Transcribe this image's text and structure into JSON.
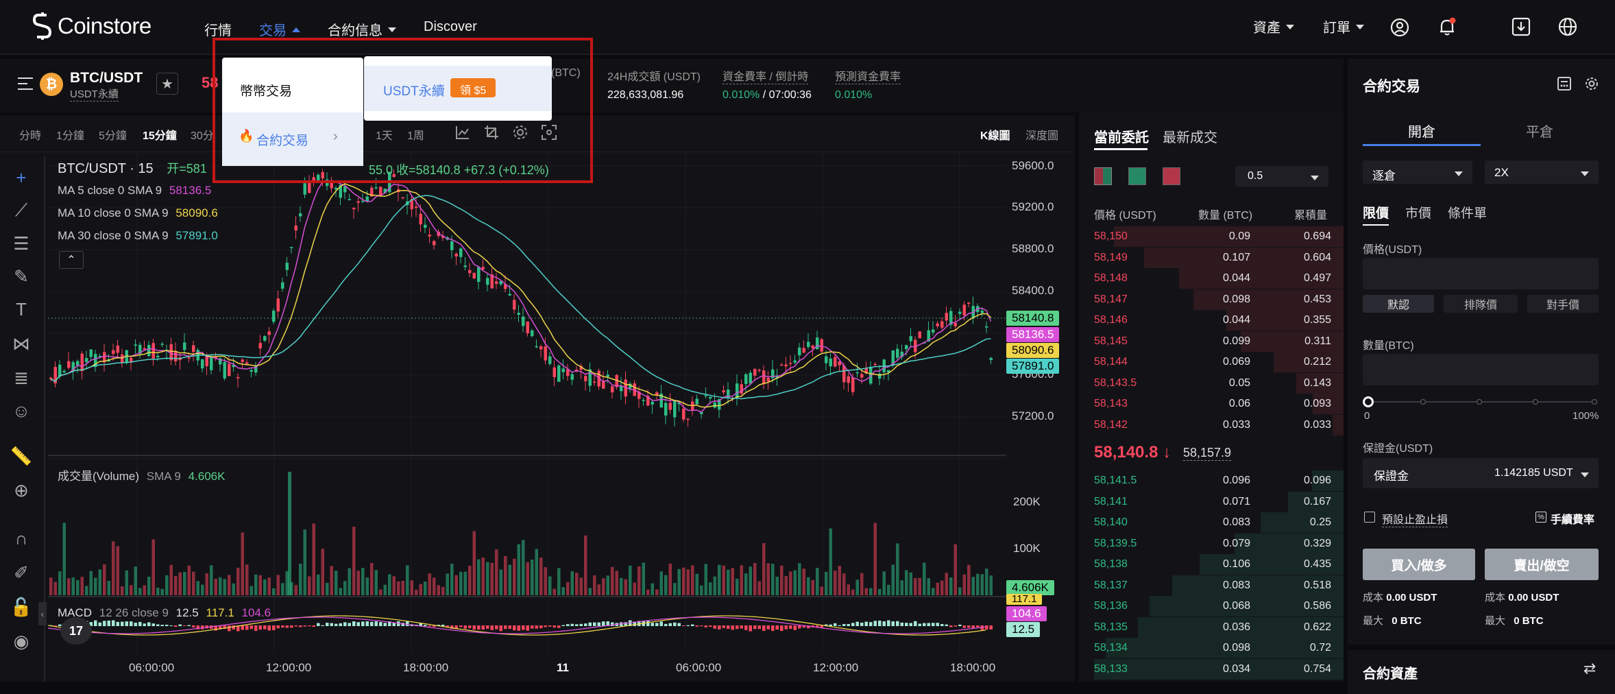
{
  "nav": {
    "logo_text": "Coinstore",
    "items": [
      {
        "label": "行情"
      },
      {
        "label": "交易"
      },
      {
        "label": "合約信息"
      },
      {
        "label": "Discover"
      }
    ],
    "right": {
      "assets": "資產",
      "orders": "訂單"
    }
  },
  "ticker": {
    "symbol": "BTC/USDT",
    "sub": "USDT永續",
    "price_partial": "58",
    "partial_label": "(BTC)",
    "stats": [
      {
        "label": "24H成交額 (USDT)",
        "value": "228,633,081.96"
      },
      {
        "label": "資金費率 / 倒計時",
        "value": "0.010%",
        "value2": " / 07:00:36"
      },
      {
        "label": "預測資金費率",
        "value": "0.010%"
      }
    ]
  },
  "dropdown": {
    "left_items": [
      "幣幣交易",
      "合約交易"
    ],
    "right_item": "USDT永續",
    "badge": "領 $5"
  },
  "timeframes": [
    "分時",
    "1分鐘",
    "5分鐘",
    "15分鐘",
    "30分",
    "1天",
    "1周"
  ],
  "selected_tf": "15分鐘",
  "chart_views": [
    "K線圖",
    "深度圖"
  ],
  "chart_legend": {
    "title": "BTC/USDT · 15",
    "ohlc_open": "开=581",
    "ohlc_tail": "55.0",
    "close_label": "收=58140.8",
    "change": "+67.3 (+0.12%)",
    "ma": [
      {
        "label": "MA 5 close 0 SMA 9",
        "value": "58136.5",
        "color": "#d84fd8"
      },
      {
        "label": "MA 10 close 0 SMA 9",
        "value": "58090.6",
        "color": "#f0d44a"
      },
      {
        "label": "MA 30 close 0 SMA 9",
        "value": "57891.0",
        "color": "#4fd0c8"
      }
    ],
    "volume_label": "成交量(Volume)",
    "volume_sma": "SMA 9",
    "volume_value": "4.606K",
    "macd_label": "MACD",
    "macd_params": "12 26 close 9",
    "macd_v1": "12.5",
    "macd_v2": "117.1",
    "macd_v3": "104.6"
  },
  "price_axis": [
    "59600.0",
    "59200.0",
    "58800.0",
    "58400.0",
    "57600.0",
    "57200.0"
  ],
  "price_tags": [
    {
      "value": "58140.8",
      "color": "#5ad28a"
    },
    {
      "value": "58136.5",
      "color": "#d84fd8"
    },
    {
      "value": "58090.6",
      "color": "#f0d44a"
    },
    {
      "value": "57891.0",
      "color": "#4fd0c8"
    }
  ],
  "volume_axis": [
    "200K",
    "100K"
  ],
  "volume_tag": "4.606K",
  "volume_tag_under": "117.1",
  "macd_tags": [
    "104.6",
    "12.5"
  ],
  "time_axis": [
    "06:00:00",
    "12:00:00",
    "18:00:00",
    "11",
    "06:00:00",
    "12:00:00",
    "18:00:00"
  ],
  "orderbook": {
    "tabs": [
      "當前委託",
      "最新成交"
    ],
    "precision": "0.5",
    "headers": [
      "價格 (USDT)",
      "數量 (BTC)",
      "累積量"
    ],
    "asks": [
      [
        "58,150",
        "0.09",
        "0.694"
      ],
      [
        "58,149",
        "0.107",
        "0.604"
      ],
      [
        "58,148",
        "0.044",
        "0.497"
      ],
      [
        "58,147",
        "0.098",
        "0.453"
      ],
      [
        "58,146",
        "0.044",
        "0.355"
      ],
      [
        "58,145",
        "0.099",
        "0.311"
      ],
      [
        "58,144",
        "0.069",
        "0.212"
      ],
      [
        "58,143.5",
        "0.05",
        "0.143"
      ],
      [
        "58,143",
        "0.06",
        "0.093"
      ],
      [
        "58,142",
        "0.033",
        "0.033"
      ]
    ],
    "last_price": "58,140.8",
    "last_arrow": "↓",
    "mark_price": "58,157.9",
    "bids": [
      [
        "58,141.5",
        "0.096",
        "0.096"
      ],
      [
        "58,141",
        "0.071",
        "0.167"
      ],
      [
        "58,140",
        "0.083",
        "0.25"
      ],
      [
        "58,139.5",
        "0.079",
        "0.329"
      ],
      [
        "58,138",
        "0.106",
        "0.435"
      ],
      [
        "58,137",
        "0.083",
        "0.518"
      ],
      [
        "58,136",
        "0.068",
        "0.586"
      ],
      [
        "58,135",
        "0.036",
        "0.622"
      ],
      [
        "58,134",
        "0.098",
        "0.72"
      ],
      [
        "58,133",
        "0.034",
        "0.754"
      ]
    ]
  },
  "trade_panel": {
    "title": "合約交易",
    "tabs": [
      "開倉",
      "平倉"
    ],
    "margin_mode": "逐倉",
    "leverage": "2X",
    "order_types": [
      "限價",
      "市價",
      "條件單"
    ],
    "price_label": "價格(USDT)",
    "price_buttons": [
      "默認",
      "排隊價",
      "對手價"
    ],
    "qty_label": "數量(BTC)",
    "slider_min": "0",
    "slider_max": "100%",
    "margin_label": "保證金(USDT)",
    "margin_field": "保證金",
    "margin_value": "1.142185 USDT",
    "tpsl_label": "預設止盈止損",
    "fee_label": "手續費率",
    "buy_label": "買入/做多",
    "sell_label": "賣出/做空",
    "cost_label": "成本",
    "cost_value": "0.00 USDT",
    "max_label": "最大",
    "max_value": "0 BTC",
    "assets_title": "合約資產"
  },
  "colors": {
    "accent": "#4a7fe8",
    "up": "#2ebd85",
    "down": "#f6465d",
    "highlight_box": "#c51616"
  }
}
